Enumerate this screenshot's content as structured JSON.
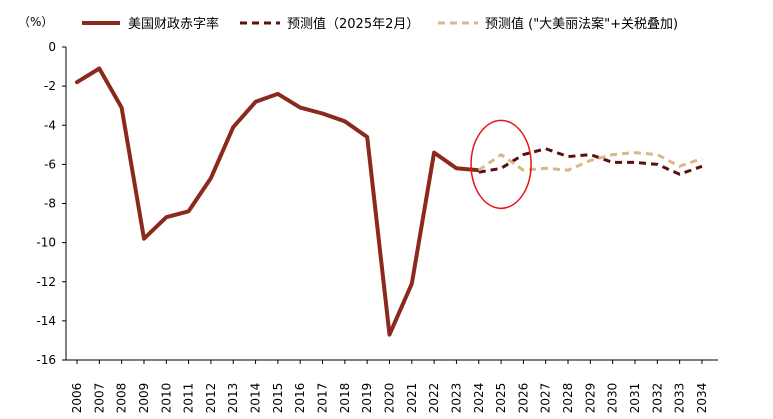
{
  "chart_data": {
    "type": "line",
    "unit_label": "（%）",
    "x": [
      "2006",
      "2007",
      "2008",
      "2009",
      "2010",
      "2011",
      "2012",
      "2013",
      "2014",
      "2015",
      "2016",
      "2017",
      "2018",
      "2019",
      "2020",
      "2021",
      "2022",
      "2023",
      "2024",
      "2025",
      "2026",
      "2027",
      "2028",
      "2029",
      "2030",
      "2031",
      "2032",
      "2033",
      "2034"
    ],
    "ylim": [
      -16,
      0
    ],
    "yticks": [
      0,
      -2,
      -4,
      -6,
      -8,
      -10,
      -12,
      -14,
      -16
    ],
    "grid": false,
    "legend_position": "top",
    "series": [
      {
        "name": "美国财政赤字率",
        "style": "solid",
        "color": "#8B2A1C",
        "points": [
          [
            "2006",
            -1.8
          ],
          [
            "2007",
            -1.1
          ],
          [
            "2008",
            -3.1
          ],
          [
            "2009",
            -9.8
          ],
          [
            "2010",
            -8.7
          ],
          [
            "2011",
            -8.4
          ],
          [
            "2012",
            -6.7
          ],
          [
            "2013",
            -4.1
          ],
          [
            "2014",
            -2.8
          ],
          [
            "2015",
            -2.4
          ],
          [
            "2016",
            -3.1
          ],
          [
            "2017",
            -3.4
          ],
          [
            "2018",
            -3.8
          ],
          [
            "2019",
            -4.6
          ],
          [
            "2020",
            -14.7
          ],
          [
            "2021",
            -12.1
          ],
          [
            "2022",
            -5.4
          ],
          [
            "2023",
            -6.2
          ],
          [
            "2024",
            -6.3
          ]
        ]
      },
      {
        "name": "预测值（2025年2月）",
        "style": "dashed",
        "color": "#5C0E10",
        "points": [
          [
            "2024",
            -6.4
          ],
          [
            "2025",
            -6.2
          ],
          [
            "2026",
            -5.5
          ],
          [
            "2027",
            -5.2
          ],
          [
            "2028",
            -5.6
          ],
          [
            "2029",
            -5.5
          ],
          [
            "2030",
            -5.9
          ],
          [
            "2031",
            -5.9
          ],
          [
            "2032",
            -6.0
          ],
          [
            "2033",
            -6.5
          ],
          [
            "2034",
            -6.1
          ]
        ]
      },
      {
        "name": "预测值 (\"大美丽法案\"+关税叠加)",
        "style": "dashed",
        "color": "#D7B887",
        "points": [
          [
            "2024",
            -6.3
          ],
          [
            "2025",
            -5.5
          ],
          [
            "2026",
            -6.3
          ],
          [
            "2027",
            -6.2
          ],
          [
            "2028",
            -6.3
          ],
          [
            "2029",
            -5.8
          ],
          [
            "2030",
            -5.5
          ],
          [
            "2031",
            -5.4
          ],
          [
            "2032",
            -5.5
          ],
          [
            "2033",
            -6.1
          ],
          [
            "2034",
            -5.7
          ]
        ]
      }
    ],
    "annotations": [
      {
        "kind": "ellipse",
        "color": "#E5141A",
        "center_x": "2025",
        "center_y": -6.0
      }
    ]
  }
}
